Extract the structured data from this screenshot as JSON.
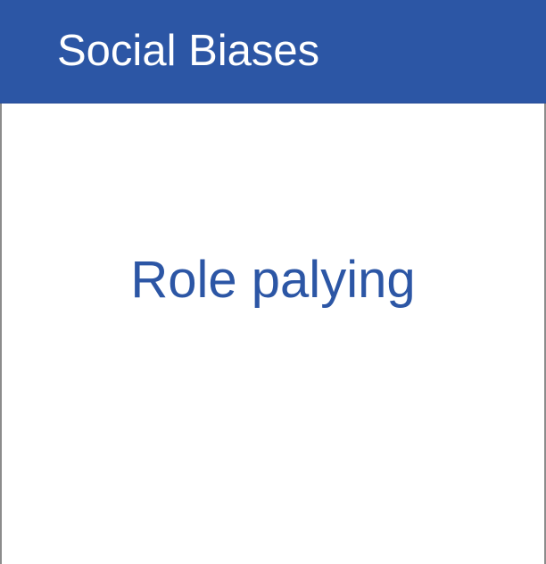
{
  "header": {
    "title": "Social Biases"
  },
  "main": {
    "text": "Role palying"
  },
  "colors": {
    "header_background": "#2c56a5",
    "header_text": "#ffffff",
    "body_text": "#2c56a5",
    "border": "#8c8c8c"
  }
}
